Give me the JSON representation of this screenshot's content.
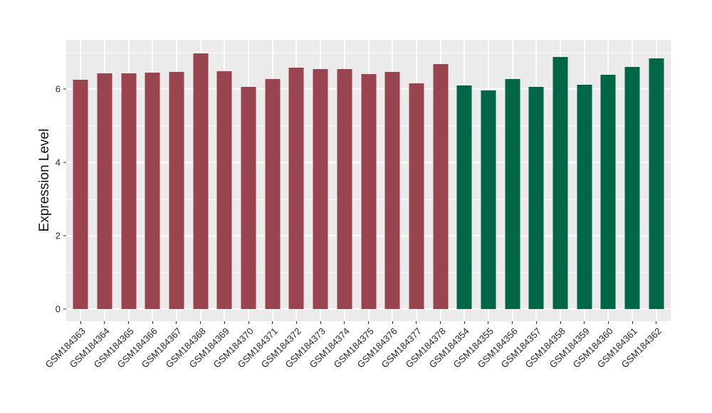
{
  "chart_data": {
    "type": "bar",
    "title": "",
    "xlabel": "",
    "ylabel": "Expression Level",
    "categories": [
      "GSM184363",
      "GSM184364",
      "GSM184365",
      "GSM184366",
      "GSM184367",
      "GSM184368",
      "GSM184369",
      "GSM184370",
      "GSM184371",
      "GSM184372",
      "GSM184373",
      "GSM184374",
      "GSM184375",
      "GSM184376",
      "GSM184377",
      "GSM184378",
      "GSM184354",
      "GSM184355",
      "GSM184356",
      "GSM184357",
      "GSM184358",
      "GSM184359",
      "GSM184360",
      "GSM184361",
      "GSM184362"
    ],
    "values": [
      6.25,
      6.43,
      6.43,
      6.45,
      6.47,
      6.97,
      6.48,
      6.06,
      6.27,
      6.58,
      6.55,
      6.55,
      6.4,
      6.47,
      6.16,
      6.67,
      6.1,
      5.97,
      6.27,
      6.06,
      6.88,
      6.12,
      6.39,
      6.6,
      6.84
    ],
    "bar_colors": [
      "#9A4450",
      "#9A4450",
      "#9A4450",
      "#9A4450",
      "#9A4450",
      "#9A4450",
      "#9A4450",
      "#9A4450",
      "#9A4450",
      "#9A4450",
      "#9A4450",
      "#9A4450",
      "#9A4450",
      "#9A4450",
      "#9A4450",
      "#9A4450",
      "#006648",
      "#006648",
      "#006648",
      "#006648",
      "#006648",
      "#006648",
      "#006648",
      "#006648",
      "#006648"
    ],
    "series": [
      {
        "name": "GSM184363-GSM184378",
        "color": "#9A4450",
        "count": 16
      },
      {
        "name": "GSM184354-GSM184362",
        "color": "#006648",
        "count": 9
      }
    ],
    "yticks": [
      0,
      2,
      4,
      6
    ],
    "yticks_minor": [
      1,
      3,
      5,
      7
    ],
    "ylim": [
      -0.33,
      7.34
    ],
    "grid": true,
    "legend": false,
    "panel_background": "#EBEBEB",
    "gridline_color": "#FFFFFF",
    "axis_text_color": "#262626",
    "tick_mark_color": "#333333",
    "x_label_angle_deg": 45
  }
}
